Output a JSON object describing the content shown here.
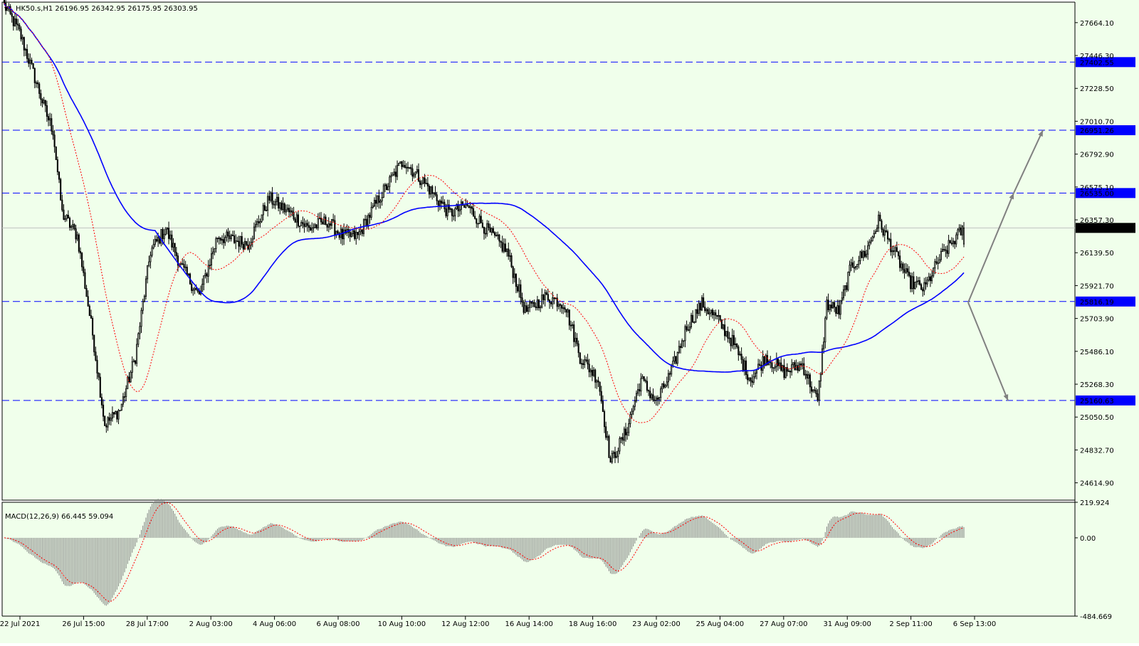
{
  "window": {
    "symbol_line": "HK50.s,H1  26196.95 26342.95 26175.95 26303.95",
    "menu_glyph": "▾"
  },
  "colors": {
    "background": "#f0ffeb",
    "candle": "#000000",
    "ma_slow": "#0000ff",
    "ma_fast": "#ff0000",
    "level_line": "#0000ff",
    "level_label_bg": "#0000ff",
    "current_price_bg": "#000000",
    "arrow": "#808080",
    "macd_hist": "#808080",
    "macd_signal": "#ff0000"
  },
  "chart_data": [
    {
      "type": "candlestick",
      "symbol": "HK50.s",
      "timeframe": "H1",
      "ohlc_last": {
        "open": 26196.95,
        "high": 26342.95,
        "low": 26175.95,
        "close": 26303.95
      },
      "ylim": [
        24500,
        27800
      ],
      "y_ticks": [
        "27664.10",
        "27446.30",
        "27228.50",
        "27010.70",
        "26792.90",
        "26575.10",
        "26357.30",
        "26139.50",
        "25921.70",
        "25703.90",
        "25486.10",
        "25268.30",
        "25050.50",
        "24832.70",
        "24614.90"
      ],
      "x_ticks": [
        "22 Jul 2021",
        "26 Jul 15:00",
        "28 Jul 17:00",
        "2 Aug 03:00",
        "4 Aug 06:00",
        "6 Aug 08:00",
        "10 Aug 10:00",
        "12 Aug 12:00",
        "16 Aug 14:00",
        "18 Aug 16:00",
        "23 Aug 02:00",
        "25 Aug 04:00",
        "27 Aug 07:00",
        "31 Aug 09:00",
        "2 Sep 11:00",
        "6 Sep 13:00"
      ],
      "levels": [
        "27402.55",
        "26951.26",
        "26535.00",
        "25816.19",
        "25160.63"
      ],
      "current_price": "26303.95",
      "anchors": [
        {
          "t": 0,
          "p": 27780
        },
        {
          "t": 10,
          "p": 27600
        },
        {
          "t": 20,
          "p": 27300
        },
        {
          "t": 28,
          "p": 27050
        },
        {
          "t": 32,
          "p": 26950
        },
        {
          "t": 38,
          "p": 26400
        },
        {
          "t": 48,
          "p": 26250
        },
        {
          "t": 58,
          "p": 25600
        },
        {
          "t": 66,
          "p": 25000
        },
        {
          "t": 76,
          "p": 25100
        },
        {
          "t": 86,
          "p": 25450
        },
        {
          "t": 96,
          "p": 26150
        },
        {
          "t": 106,
          "p": 26300
        },
        {
          "t": 116,
          "p": 26050
        },
        {
          "t": 128,
          "p": 25850
        },
        {
          "t": 140,
          "p": 26250
        },
        {
          "t": 160,
          "p": 26200
        },
        {
          "t": 174,
          "p": 26500
        },
        {
          "t": 188,
          "p": 26400
        },
        {
          "t": 200,
          "p": 26300
        },
        {
          "t": 212,
          "p": 26350
        },
        {
          "t": 222,
          "p": 26250
        },
        {
          "t": 232,
          "p": 26250
        },
        {
          "t": 246,
          "p": 26500
        },
        {
          "t": 262,
          "p": 26750
        },
        {
          "t": 276,
          "p": 26600
        },
        {
          "t": 292,
          "p": 26400
        },
        {
          "t": 304,
          "p": 26450
        },
        {
          "t": 316,
          "p": 26300
        },
        {
          "t": 330,
          "p": 26150
        },
        {
          "t": 342,
          "p": 25750
        },
        {
          "t": 356,
          "p": 25850
        },
        {
          "t": 368,
          "p": 25800
        },
        {
          "t": 378,
          "p": 25450
        },
        {
          "t": 390,
          "p": 25300
        },
        {
          "t": 398,
          "p": 24750
        },
        {
          "t": 408,
          "p": 24950
        },
        {
          "t": 418,
          "p": 25300
        },
        {
          "t": 428,
          "p": 25150
        },
        {
          "t": 438,
          "p": 25350
        },
        {
          "t": 448,
          "p": 25650
        },
        {
          "t": 458,
          "p": 25800
        },
        {
          "t": 468,
          "p": 25700
        },
        {
          "t": 478,
          "p": 25550
        },
        {
          "t": 490,
          "p": 25300
        },
        {
          "t": 500,
          "p": 25450
        },
        {
          "t": 512,
          "p": 25350
        },
        {
          "t": 524,
          "p": 25400
        },
        {
          "t": 534,
          "p": 25150
        },
        {
          "t": 540,
          "p": 25800
        },
        {
          "t": 548,
          "p": 25750
        },
        {
          "t": 556,
          "p": 26050
        },
        {
          "t": 566,
          "p": 26150
        },
        {
          "t": 574,
          "p": 26350
        },
        {
          "t": 584,
          "p": 26150
        },
        {
          "t": 594,
          "p": 25950
        },
        {
          "t": 604,
          "p": 25900
        },
        {
          "t": 614,
          "p": 26100
        },
        {
          "t": 624,
          "p": 26230
        },
        {
          "t": 630,
          "p": 26304
        }
      ]
    },
    {
      "type": "histogram",
      "indicator": "MACD",
      "params": "MACD(12,26,9) 66.445 59.094",
      "macd": 66.445,
      "signal": 59.094,
      "ylim": [
        -484.669,
        219.924
      ],
      "y_ticks": [
        "219.924",
        "0.00",
        "-484.669"
      ]
    }
  ]
}
